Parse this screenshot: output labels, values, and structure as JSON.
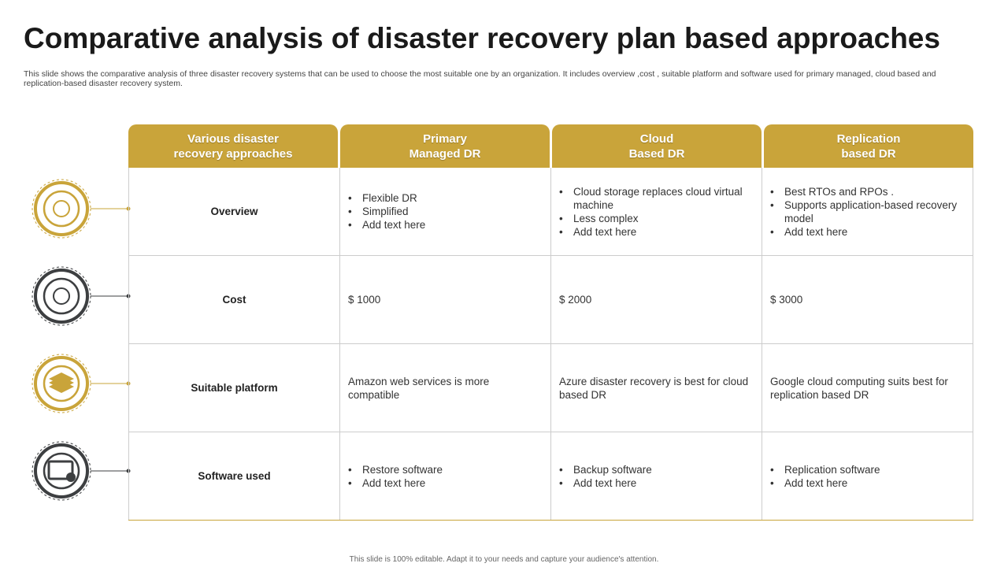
{
  "header": {
    "title": "Comparative analysis of disaster recovery plan based approaches",
    "subtitle": "This slide shows the comparative analysis of three disaster recovery systems that can be used to choose the most suitable one by an organization. It includes overview ,cost , suitable platform and  software used for primary managed, cloud based and replication-based disaster recovery system."
  },
  "table": {
    "columns": [
      [
        "Various disaster",
        "recovery approaches"
      ],
      [
        "Primary",
        "Managed DR"
      ],
      [
        "Cloud",
        "Based DR"
      ],
      [
        "Replication",
        "based DR"
      ]
    ],
    "rows": [
      [
        "Overview",
        [
          "Flexible DR",
          "Simplified",
          "Add text here"
        ],
        [
          "Cloud storage replaces cloud virtual machine",
          "Less complex",
          "Add text here"
        ],
        [
          "Best RTOs and RPOs .",
          "Supports application-based recovery model",
          "Add text here"
        ]
      ],
      [
        "Cost",
        "$ 1000",
        "$ 2000",
        "$ 3000"
      ],
      [
        "Suitable platform",
        "Amazon web services is more compatible",
        "Azure disaster recovery is best for cloud based DR",
        "Google cloud computing suits best for replication based DR"
      ],
      [
        "Software used",
        [
          "Restore software",
          "Add text here"
        ],
        [
          "Backup software",
          "Add text here"
        ],
        [
          "Replication software",
          "Add text here"
        ]
      ]
    ]
  },
  "footer": "This slide is 100% editable.  Adapt it to your needs and capture your audience's attention."
}
